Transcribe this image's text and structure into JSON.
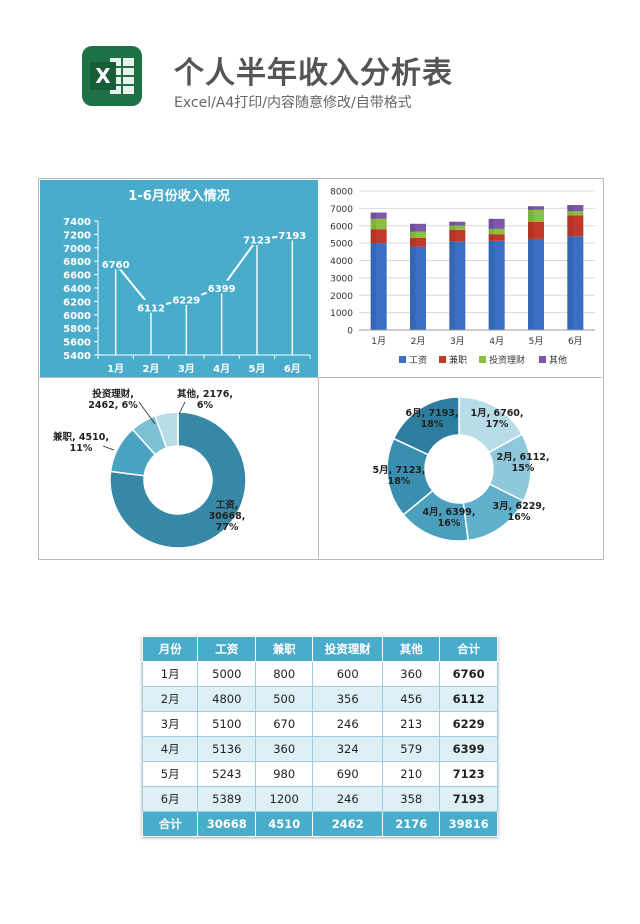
{
  "header": {
    "title": "个人半年收入分析表",
    "subtitle": "Excel/A4打印/内容随意修改/自带格式",
    "logo_letter": "X"
  },
  "colors": {
    "panel_bg": "#4aaccb",
    "wage": "#3a6fc4",
    "parttime": "#c0392b",
    "invest": "#8cbf3f",
    "other": "#7d58a8",
    "excel_green": "#1e7145"
  },
  "chart_data": [
    {
      "type": "line",
      "title": "1-6月份收入情况",
      "categories": [
        "1月",
        "2月",
        "3月",
        "4月",
        "5月",
        "6月"
      ],
      "values": [
        6760,
        6112,
        6229,
        6399,
        7123,
        7193
      ],
      "yticks": [
        "7400",
        "7200",
        "7000",
        "6800",
        "6600",
        "6400",
        "6200",
        "6000",
        "5800",
        "5600",
        "5400"
      ],
      "ylim": [
        5400,
        7400
      ],
      "data_labels": [
        "6760",
        "6112",
        "6229",
        "6399",
        "7123",
        "7193"
      ]
    },
    {
      "type": "bar",
      "stacked": true,
      "categories": [
        "1月",
        "2月",
        "3月",
        "4月",
        "5月",
        "6月"
      ],
      "yticks": [
        "8000",
        "7000",
        "6000",
        "5000",
        "4000",
        "3000",
        "2000",
        "1000",
        "0"
      ],
      "ylim": [
        0,
        8000
      ],
      "series": [
        {
          "name": "工资",
          "values": [
            5000,
            4800,
            5100,
            5136,
            5243,
            5389
          ]
        },
        {
          "name": "兼职",
          "values": [
            800,
            500,
            670,
            360,
            980,
            1200
          ]
        },
        {
          "name": "投资理财",
          "values": [
            600,
            356,
            246,
            324,
            690,
            246
          ]
        },
        {
          "name": "其他",
          "values": [
            360,
            456,
            213,
            579,
            210,
            358
          ]
        }
      ],
      "legend": "bottom"
    },
    {
      "type": "pie",
      "donut": true,
      "values": [
        30668,
        4510,
        2462,
        2176
      ],
      "labels": [
        {
          "line1": "工资,",
          "line2": "30668,",
          "line3": "77%"
        },
        {
          "line1": "兼职, 4510,",
          "line2": "11%",
          "line3": ""
        },
        {
          "line1": "投资理财,",
          "line2": "2462, 6%",
          "line3": ""
        },
        {
          "line1": "其他, 2176,",
          "line2": "6%",
          "line3": ""
        }
      ]
    },
    {
      "type": "pie",
      "donut": true,
      "values": [
        6760,
        6112,
        6229,
        6399,
        7123,
        7193
      ],
      "labels": [
        {
          "line1": "1月, 6760,",
          "line2": "17%"
        },
        {
          "line1": "2月, 6112,",
          "line2": "15%"
        },
        {
          "line1": "3月, 6229,",
          "line2": "16%"
        },
        {
          "line1": "4月, 6399,",
          "line2": "16%"
        },
        {
          "line1": "5月, 7123,",
          "line2": "18%"
        },
        {
          "line1": "6月, 7193,",
          "line2": "18%"
        }
      ]
    }
  ],
  "table": {
    "headers": [
      "月份",
      "工资",
      "兼职",
      "投资理财",
      "其他",
      "合计"
    ],
    "rows": [
      [
        "1月",
        "5000",
        "800",
        "600",
        "360",
        "6760"
      ],
      [
        "2月",
        "4800",
        "500",
        "356",
        "456",
        "6112"
      ],
      [
        "3月",
        "5100",
        "670",
        "246",
        "213",
        "6229"
      ],
      [
        "4月",
        "5136",
        "360",
        "324",
        "579",
        "6399"
      ],
      [
        "5月",
        "5243",
        "980",
        "690",
        "210",
        "7123"
      ],
      [
        "6月",
        "5389",
        "1200",
        "246",
        "358",
        "7193"
      ]
    ],
    "footer": [
      "合计",
      "30668",
      "4510",
      "2462",
      "2176",
      "39816"
    ]
  }
}
